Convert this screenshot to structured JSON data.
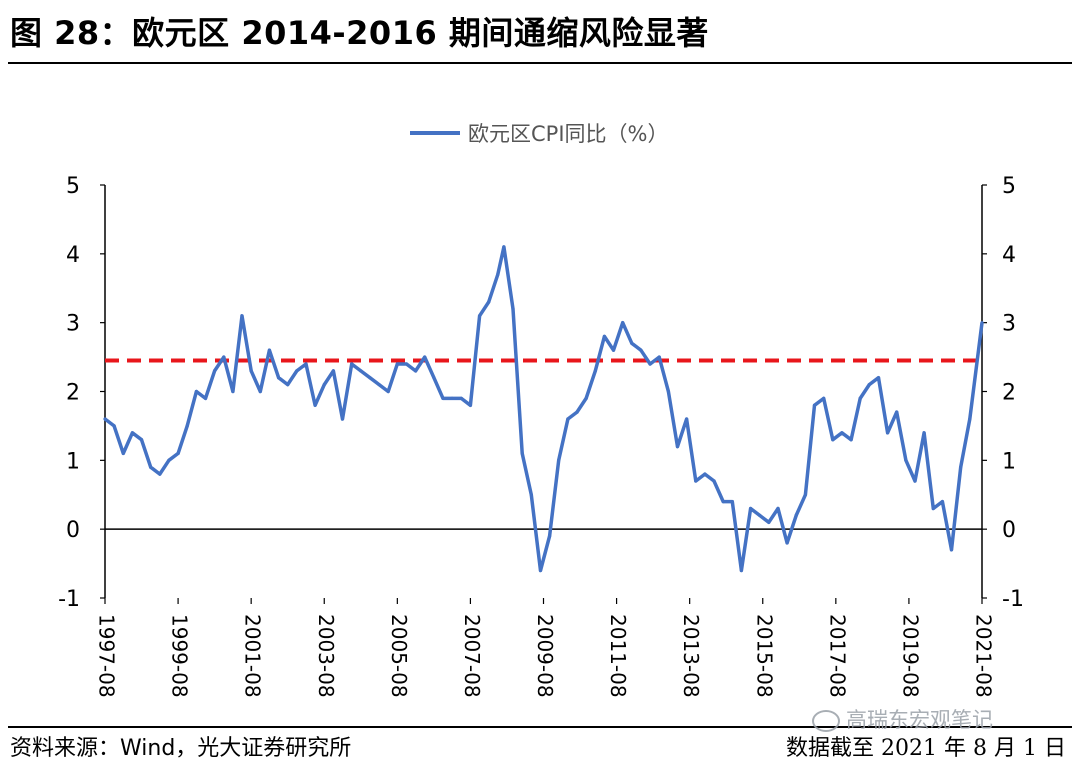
{
  "header": {
    "figure_title": "图 28：欧元区 2014-2016 期间通缩风险显著"
  },
  "footer": {
    "source": "资料来源：Wind，光大证券研究所",
    "date_note": "数据截至 2021 年 8 月 1 日",
    "watermark": "高瑞东宏观笔记"
  },
  "chart_data": {
    "type": "line",
    "title": "",
    "xlabel": "",
    "ylabel": "",
    "ylim": [
      -1,
      5
    ],
    "y_ticks": [
      -1,
      0,
      1,
      2,
      3,
      4,
      5
    ],
    "y2_ticks": [
      -1,
      0,
      1,
      2,
      3,
      4,
      5
    ],
    "x_range": [
      "1997-08",
      "2021-08"
    ],
    "x_ticks": [
      "1997-08",
      "1999-08",
      "2001-08",
      "2003-08",
      "2005-08",
      "2007-08",
      "2009-08",
      "2011-08",
      "2013-08",
      "2015-08",
      "2017-08",
      "2019-08",
      "2021-08"
    ],
    "legend_position": "top-center",
    "grid": false,
    "colors": {
      "series": "#4472c4",
      "reference": "#e8161b"
    },
    "reference_line": {
      "y": 2.45,
      "style": "dashed"
    },
    "series": [
      {
        "name": "欧元区CPI同比（%）",
        "x": [
          "1997-08",
          "1997-11",
          "1998-02",
          "1998-05",
          "1998-08",
          "1998-11",
          "1999-02",
          "1999-05",
          "1999-08",
          "1999-11",
          "2000-02",
          "2000-05",
          "2000-08",
          "2000-11",
          "2001-02",
          "2001-05",
          "2001-08",
          "2001-11",
          "2002-02",
          "2002-05",
          "2002-08",
          "2002-11",
          "2003-02",
          "2003-05",
          "2003-08",
          "2003-11",
          "2004-02",
          "2004-05",
          "2004-08",
          "2004-11",
          "2005-02",
          "2005-05",
          "2005-08",
          "2005-11",
          "2006-02",
          "2006-05",
          "2006-08",
          "2006-11",
          "2007-02",
          "2007-05",
          "2007-08",
          "2007-11",
          "2008-02",
          "2008-05",
          "2008-07",
          "2008-10",
          "2009-01",
          "2009-04",
          "2009-07",
          "2009-10",
          "2010-01",
          "2010-04",
          "2010-07",
          "2010-10",
          "2011-01",
          "2011-04",
          "2011-07",
          "2011-10",
          "2012-01",
          "2012-04",
          "2012-07",
          "2012-10",
          "2013-01",
          "2013-04",
          "2013-07",
          "2013-10",
          "2014-01",
          "2014-04",
          "2014-07",
          "2014-10",
          "2015-01",
          "2015-04",
          "2015-07",
          "2015-10",
          "2016-01",
          "2016-04",
          "2016-07",
          "2016-10",
          "2017-01",
          "2017-04",
          "2017-07",
          "2017-10",
          "2018-01",
          "2018-04",
          "2018-07",
          "2018-10",
          "2019-01",
          "2019-04",
          "2019-07",
          "2019-10",
          "2020-01",
          "2020-04",
          "2020-07",
          "2020-10",
          "2021-01",
          "2021-04",
          "2021-08"
        ],
        "values": [
          1.6,
          1.5,
          1.1,
          1.4,
          1.3,
          0.9,
          0.8,
          1.0,
          1.1,
          1.5,
          2.0,
          1.9,
          2.3,
          2.5,
          2.0,
          3.1,
          2.3,
          2.0,
          2.6,
          2.2,
          2.1,
          2.3,
          2.4,
          1.8,
          2.1,
          2.3,
          1.6,
          2.4,
          2.3,
          2.2,
          2.1,
          2.0,
          2.4,
          2.4,
          2.3,
          2.5,
          2.2,
          1.9,
          1.9,
          1.9,
          1.8,
          3.1,
          3.3,
          3.7,
          4.1,
          3.2,
          1.1,
          0.5,
          -0.6,
          -0.1,
          1.0,
          1.6,
          1.7,
          1.9,
          2.3,
          2.8,
          2.6,
          3.0,
          2.7,
          2.6,
          2.4,
          2.5,
          2.0,
          1.2,
          1.6,
          0.7,
          0.8,
          0.7,
          0.4,
          0.4,
          -0.6,
          0.3,
          0.2,
          0.1,
          0.3,
          -0.2,
          0.2,
          0.5,
          1.8,
          1.9,
          1.3,
          1.4,
          1.3,
          1.9,
          2.1,
          2.2,
          1.4,
          1.7,
          1.0,
          0.7,
          1.4,
          0.3,
          0.4,
          -0.3,
          0.9,
          1.6,
          3.0
        ]
      }
    ]
  }
}
